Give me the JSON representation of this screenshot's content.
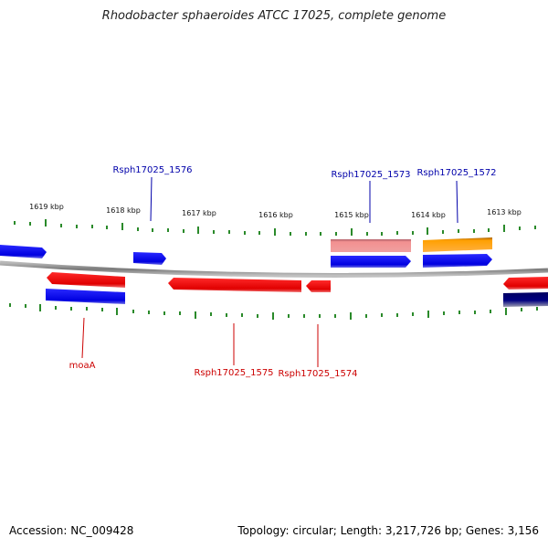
{
  "header": {
    "title": "Rhodobacter sphaeroides ATCC 17025, complete genome"
  },
  "footer": {
    "accession": "Accession: NC_009428",
    "stats": "Topology: circular; Length: 3,217,726 bp; Genes: 3,156"
  },
  "scale": {
    "unit": "kbp",
    "ticks": [
      "1619 kbp",
      "1618 kbp",
      "1617 kbp",
      "1616 kbp",
      "1615 kbp",
      "1614 kbp",
      "1613 kbp"
    ]
  },
  "genes": {
    "forward_labels": [
      "Rsph17025_1576",
      "Rsph17025_1573",
      "Rsph17025_1572"
    ],
    "reverse_labels": [
      "moaA",
      "Rsph17025_1575",
      "Rsph17025_1574"
    ]
  },
  "colors": {
    "forward_label": "#0000aa",
    "reverse_label": "#cc0000",
    "tick": "#2a8a2a",
    "backbone": "#8a8a8a",
    "gene_blue": "#0000ee",
    "gene_red": "#ee0000",
    "gene_pink": "#f08a8a",
    "gene_orange": "#ff9900",
    "gene_navy": "#000080"
  }
}
